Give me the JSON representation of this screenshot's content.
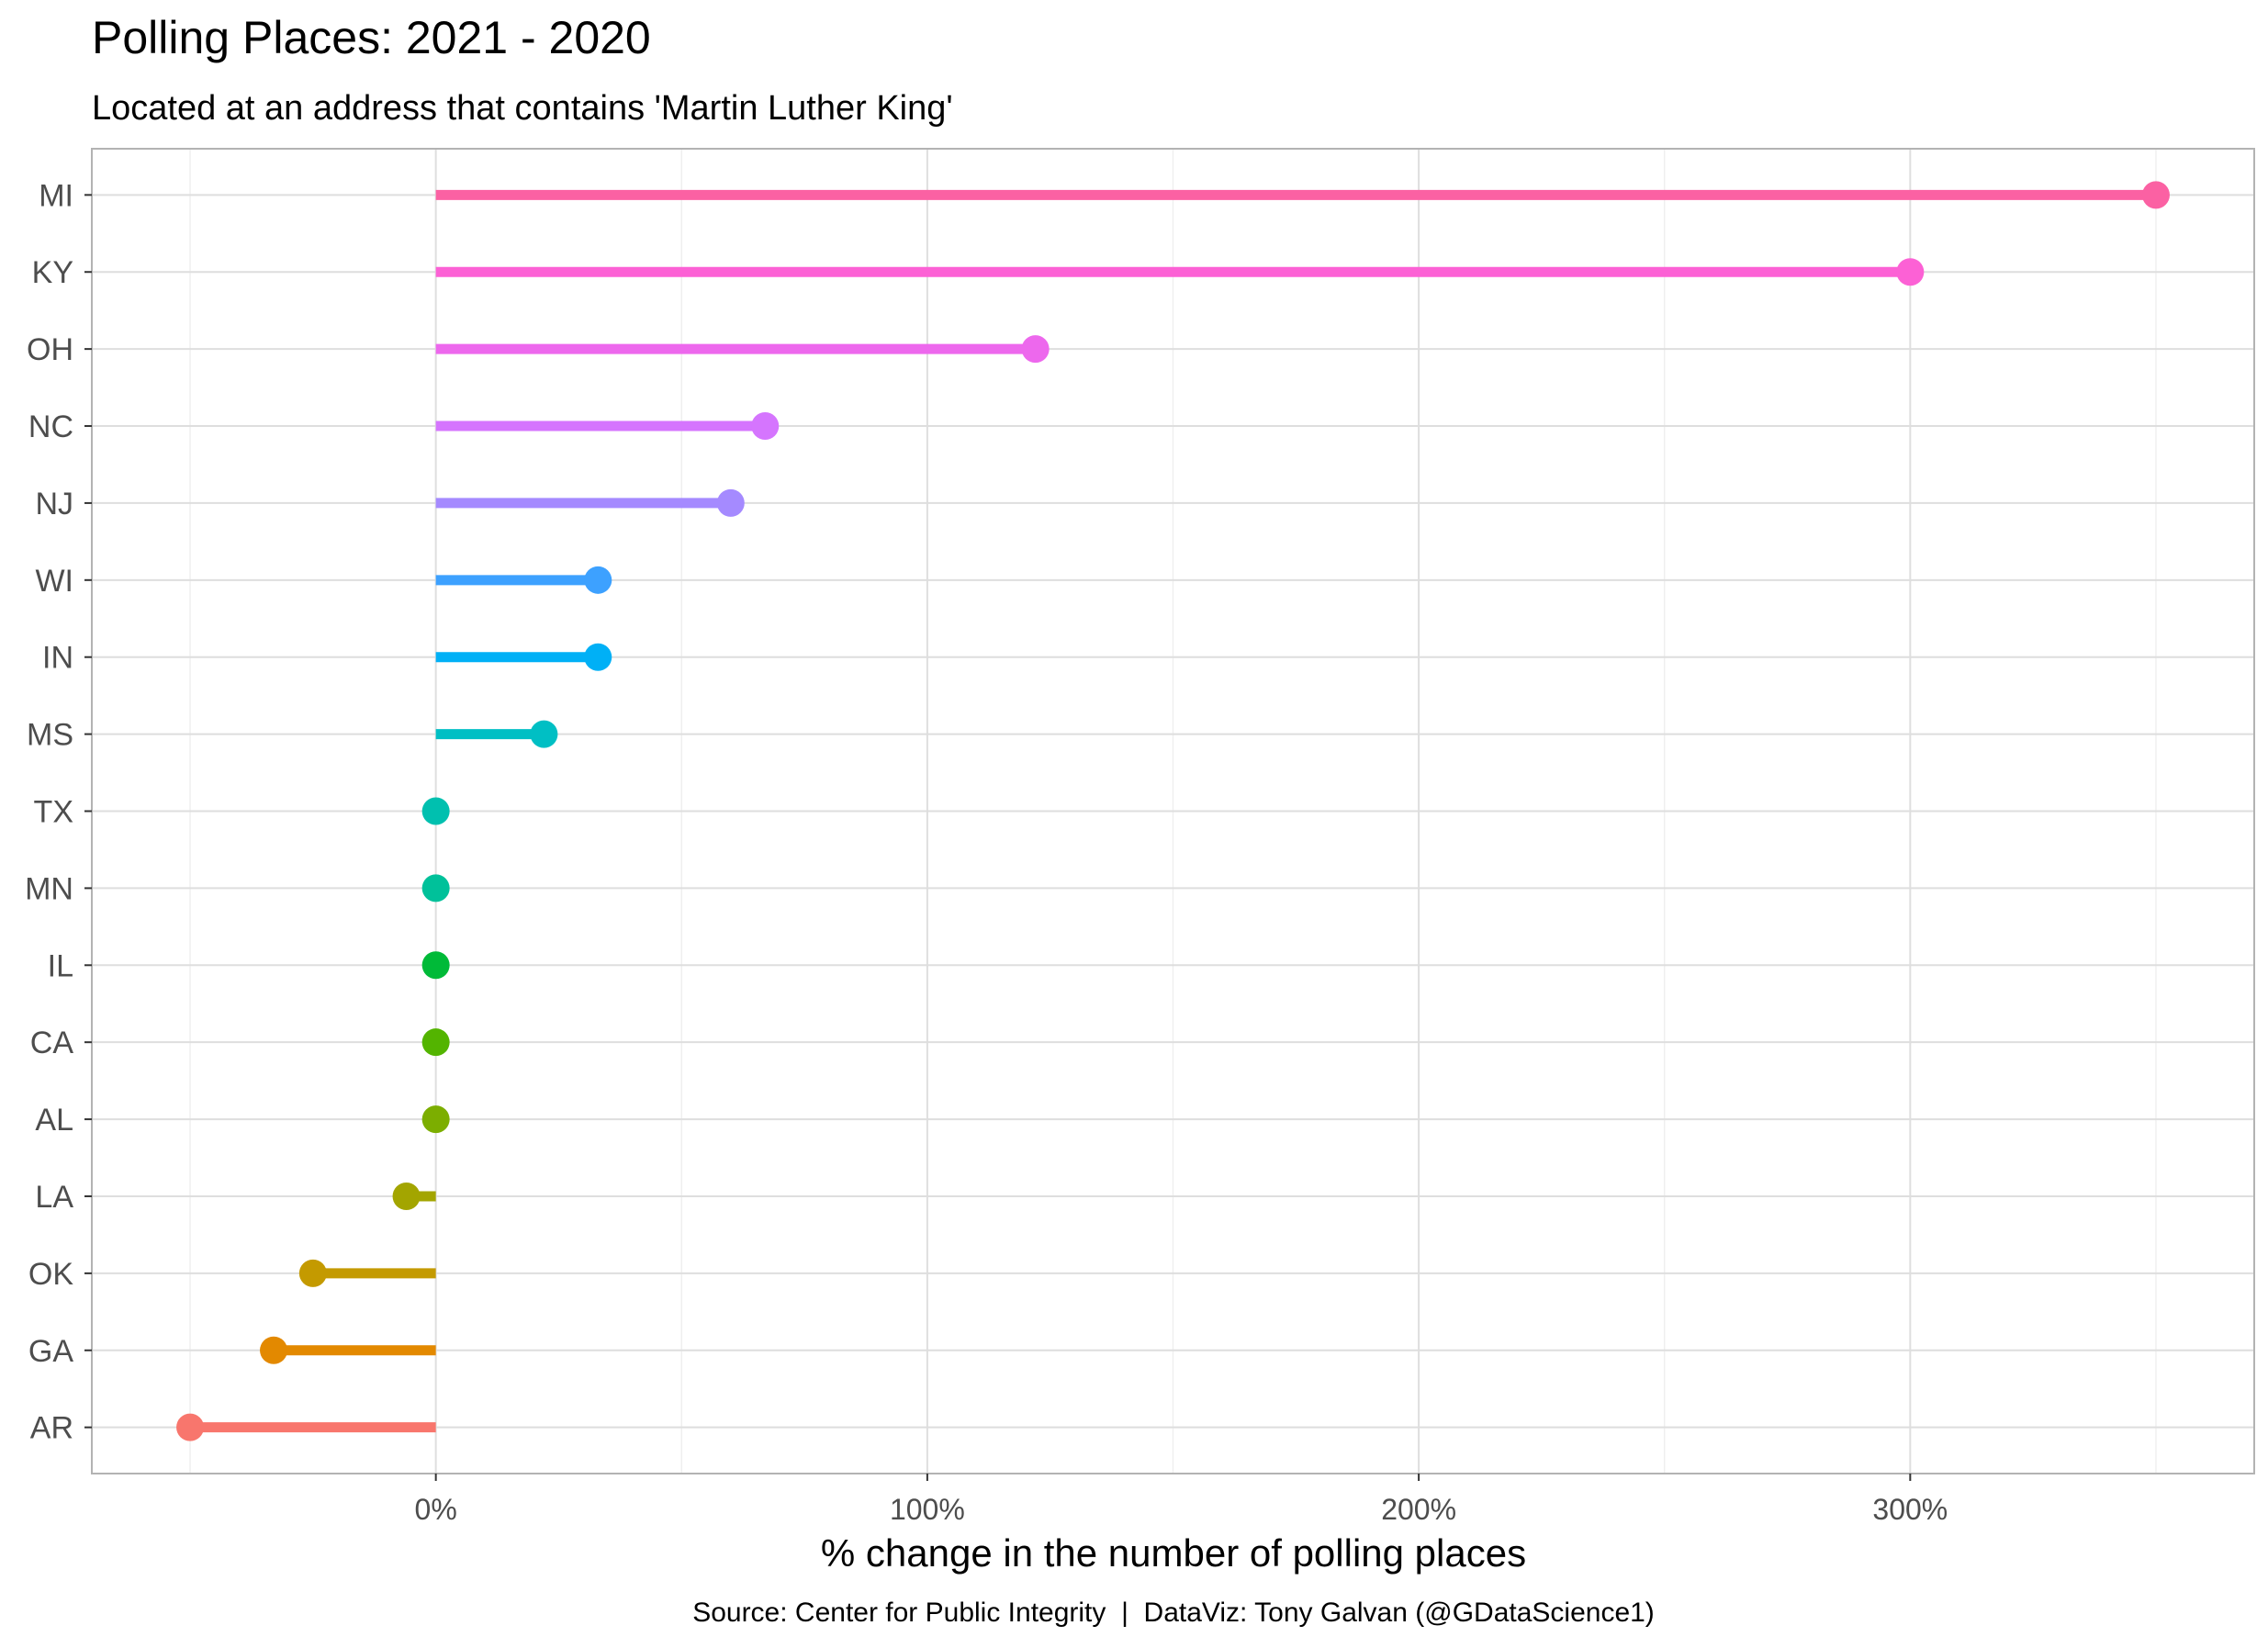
{
  "chart_data": {
    "type": "lollipop",
    "title": "Polling Places: 2021 - 2020",
    "subtitle": "Located at an address that contains 'Martin Luther King'",
    "xlabel": "% change in the number of polling places",
    "ylabel": "",
    "caption": "Source: Center for Public Integrity  |  DataViz: Tony Galvan (@GDataScience1)",
    "xlim": [
      -70,
      370
    ],
    "x_ticks": [
      0,
      100,
      200,
      300
    ],
    "x_tick_labels": [
      "0%",
      "100%",
      "200%",
      "300%"
    ],
    "grid": true,
    "legend": "none",
    "categories": [
      "MI",
      "KY",
      "OH",
      "NC",
      "NJ",
      "WI",
      "IN",
      "MS",
      "TX",
      "MN",
      "IL",
      "CA",
      "AL",
      "LA",
      "OK",
      "GA",
      "AR"
    ],
    "values": [
      350,
      300,
      122,
      67,
      60,
      33,
      33,
      22,
      0,
      0,
      0,
      0,
      0,
      -6,
      -25,
      -33,
      -50
    ],
    "colors": [
      "#FB61A3",
      "#FC61D5",
      "#ED68ED",
      "#D575FE",
      "#A58AFF",
      "#3DA1FF",
      "#00B0F6",
      "#00BFC4",
      "#00C0AF",
      "#00C19A",
      "#00BA38",
      "#53B400",
      "#7CAE00",
      "#A3A500",
      "#C49A00",
      "#E38900",
      "#F8766D"
    ]
  }
}
